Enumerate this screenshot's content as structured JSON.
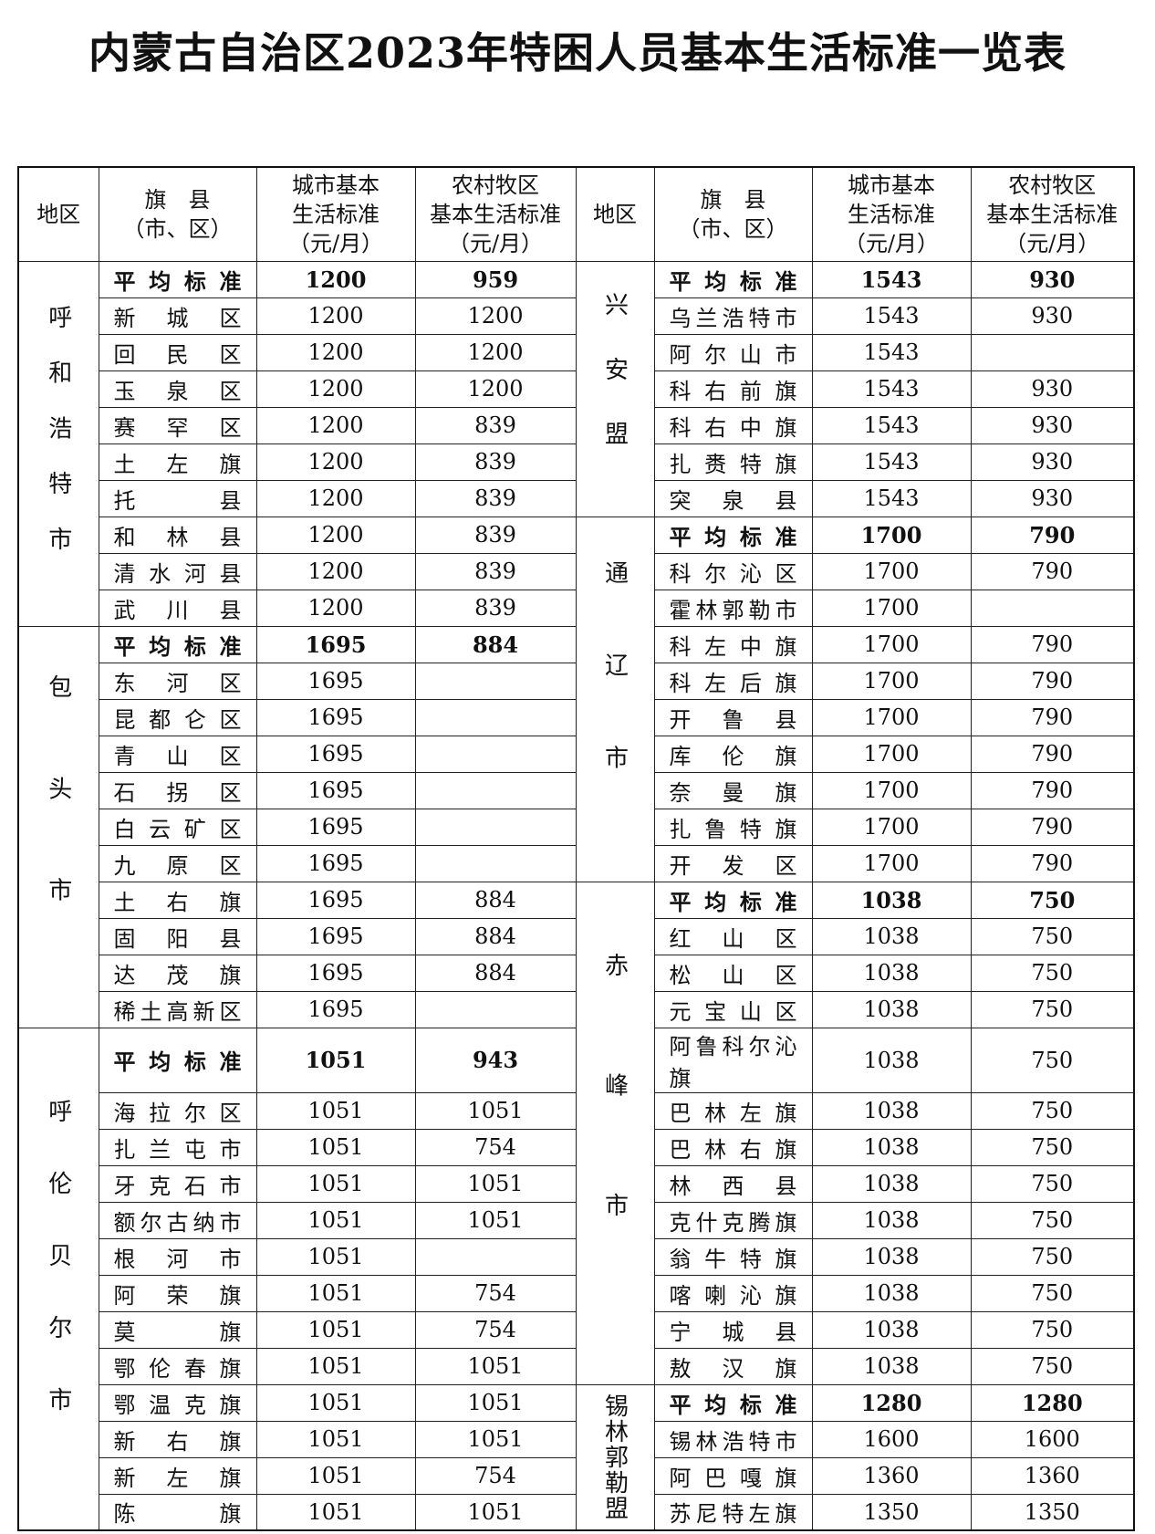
{
  "title": "内蒙古自治区2023年特困人员基本生活标准一览表",
  "table": {
    "header": [
      [
        "地区"
      ],
      [
        "旗　县",
        "（市、区）"
      ],
      [
        "城市基本",
        "生活标准",
        "（元/月）"
      ],
      [
        "农村牧区",
        "基本生活标准",
        "（元/月）"
      ],
      [
        "地区"
      ],
      [
        "旗　县",
        "（市、区）"
      ],
      [
        "城市基本",
        "生活标准",
        "（元/月）"
      ],
      [
        "农村牧区",
        "基本生活标准",
        "（元/月）"
      ]
    ],
    "left": [
      {
        "region": "呼和浩特市",
        "rows": [
          [
            "平均标准",
            1200,
            959
          ],
          [
            "新城区",
            1200,
            1200
          ],
          [
            "回民区",
            1200,
            1200
          ],
          [
            "玉泉区",
            1200,
            1200
          ],
          [
            "赛罕区",
            1200,
            839
          ],
          [
            "土左旗",
            1200,
            839
          ],
          [
            "托县",
            1200,
            839
          ],
          [
            "和林县",
            1200,
            839
          ],
          [
            "清水河县",
            1200,
            839
          ],
          [
            "武川县",
            1200,
            839
          ]
        ]
      },
      {
        "region": "包头市",
        "rows": [
          [
            "平均标准",
            1695,
            884
          ],
          [
            "东河区",
            1695,
            null
          ],
          [
            "昆都仑区",
            1695,
            null
          ],
          [
            "青山区",
            1695,
            null
          ],
          [
            "石拐区",
            1695,
            null
          ],
          [
            "白云矿区",
            1695,
            null
          ],
          [
            "九原区",
            1695,
            null
          ],
          [
            "土右旗",
            1695,
            884
          ],
          [
            "固阳县",
            1695,
            884
          ],
          [
            "达茂旗",
            1695,
            884
          ],
          [
            "稀土高新区",
            1695,
            null
          ]
        ]
      },
      {
        "region": "呼伦贝尔市",
        "rows": [
          [
            "平均标准",
            1051,
            943
          ],
          [
            "海拉尔区",
            1051,
            1051
          ],
          [
            "扎兰屯市",
            1051,
            754
          ],
          [
            "牙克石市",
            1051,
            1051
          ],
          [
            "额尔古纳市",
            1051,
            1051
          ],
          [
            "根河市",
            1051,
            null
          ],
          [
            "阿荣旗",
            1051,
            754
          ],
          [
            "莫旗",
            1051,
            754
          ],
          [
            "鄂伦春旗",
            1051,
            1051
          ],
          [
            "鄂温克旗",
            1051,
            1051
          ],
          [
            "新右旗",
            1051,
            1051
          ],
          [
            "新左旗",
            1051,
            754
          ],
          [
            "陈旗",
            1051,
            1051
          ]
        ]
      }
    ],
    "right": [
      {
        "region": "兴安盟",
        "rows": [
          [
            "平均标准",
            1543,
            930
          ],
          [
            "乌兰浩特市",
            1543,
            930
          ],
          [
            "阿尔山市",
            1543,
            null
          ],
          [
            "科右前旗",
            1543,
            930
          ],
          [
            "科右中旗",
            1543,
            930
          ],
          [
            "扎赉特旗",
            1543,
            930
          ],
          [
            "突泉县",
            1543,
            930
          ]
        ]
      },
      {
        "region": "通辽市",
        "rows": [
          [
            "平均标准",
            1700,
            790
          ],
          [
            "科尔沁区",
            1700,
            790
          ],
          [
            "霍林郭勒市",
            1700,
            null
          ],
          [
            "科左中旗",
            1700,
            790
          ],
          [
            "科左后旗",
            1700,
            790
          ],
          [
            "开鲁县",
            1700,
            790
          ],
          [
            "库伦旗",
            1700,
            790
          ],
          [
            "奈曼旗",
            1700,
            790
          ],
          [
            "扎鲁特旗",
            1700,
            790
          ],
          [
            "开发区",
            1700,
            790
          ]
        ]
      },
      {
        "region": "赤峰市",
        "rows": [
          [
            "平均标准",
            1038,
            750
          ],
          [
            "红山区",
            1038,
            750
          ],
          [
            "松山区",
            1038,
            750
          ],
          [
            "元宝山区",
            1038,
            750
          ],
          [
            "阿鲁科尔沁旗",
            1038,
            750
          ],
          [
            "巴林左旗",
            1038,
            750
          ],
          [
            "巴林右旗",
            1038,
            750
          ],
          [
            "林西县",
            1038,
            750
          ],
          [
            "克什克腾旗",
            1038,
            750
          ],
          [
            "翁牛特旗",
            1038,
            750
          ],
          [
            "喀喇沁旗",
            1038,
            750
          ],
          [
            "宁城县",
            1038,
            750
          ],
          [
            "敖汉旗",
            1038,
            750
          ]
        ]
      },
      {
        "region": "锡林郭勒盟",
        "rows": [
          [
            "平均标准",
            1280,
            1280
          ],
          [
            "锡林浩特市",
            1600,
            1600
          ],
          [
            "阿巴嘎旗",
            1360,
            1360
          ],
          [
            "苏尼特左旗",
            1350,
            1350
          ]
        ]
      }
    ]
  }
}
